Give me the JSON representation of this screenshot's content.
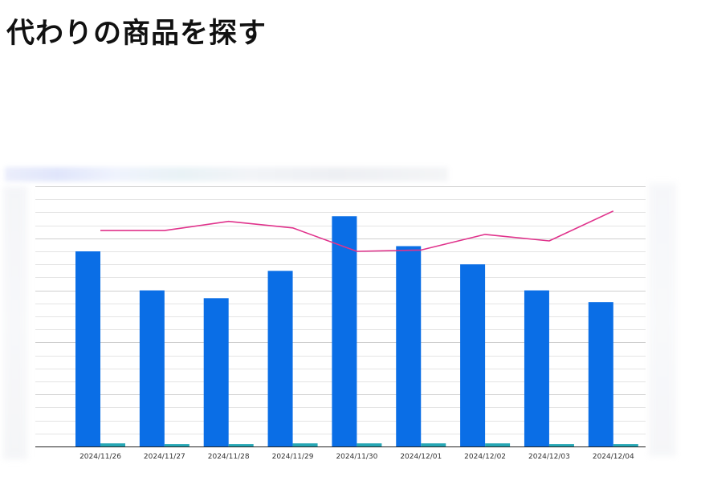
{
  "page": {
    "title": "代わりの商品を探す"
  },
  "chart_data": {
    "type": "bar",
    "title": "",
    "xlabel": "",
    "ylabel": "",
    "categories": [
      "2024/11/26",
      "2024/11/27",
      "2024/11/28",
      "2024/11/29",
      "2024/11/30",
      "2024/12/01",
      "2024/12/02",
      "2024/12/03",
      "2024/12/04"
    ],
    "series": [
      {
        "type": "bar",
        "color": "#0a6ee6",
        "values": [
          75,
          60,
          57,
          67.5,
          88.5,
          77,
          70,
          60,
          55.5
        ]
      },
      {
        "type": "bar",
        "color": "#26a7b5",
        "values": [
          1.2,
          0.9,
          0.9,
          1.2,
          1.2,
          1.2,
          1.2,
          0.9,
          0.9
        ]
      },
      {
        "type": "line",
        "color": "#e0338c",
        "values": [
          83,
          83,
          86.5,
          84,
          75,
          75.5,
          81.5,
          79,
          90.5
        ]
      }
    ],
    "ylim": [
      0,
      100
    ],
    "grid": true
  }
}
